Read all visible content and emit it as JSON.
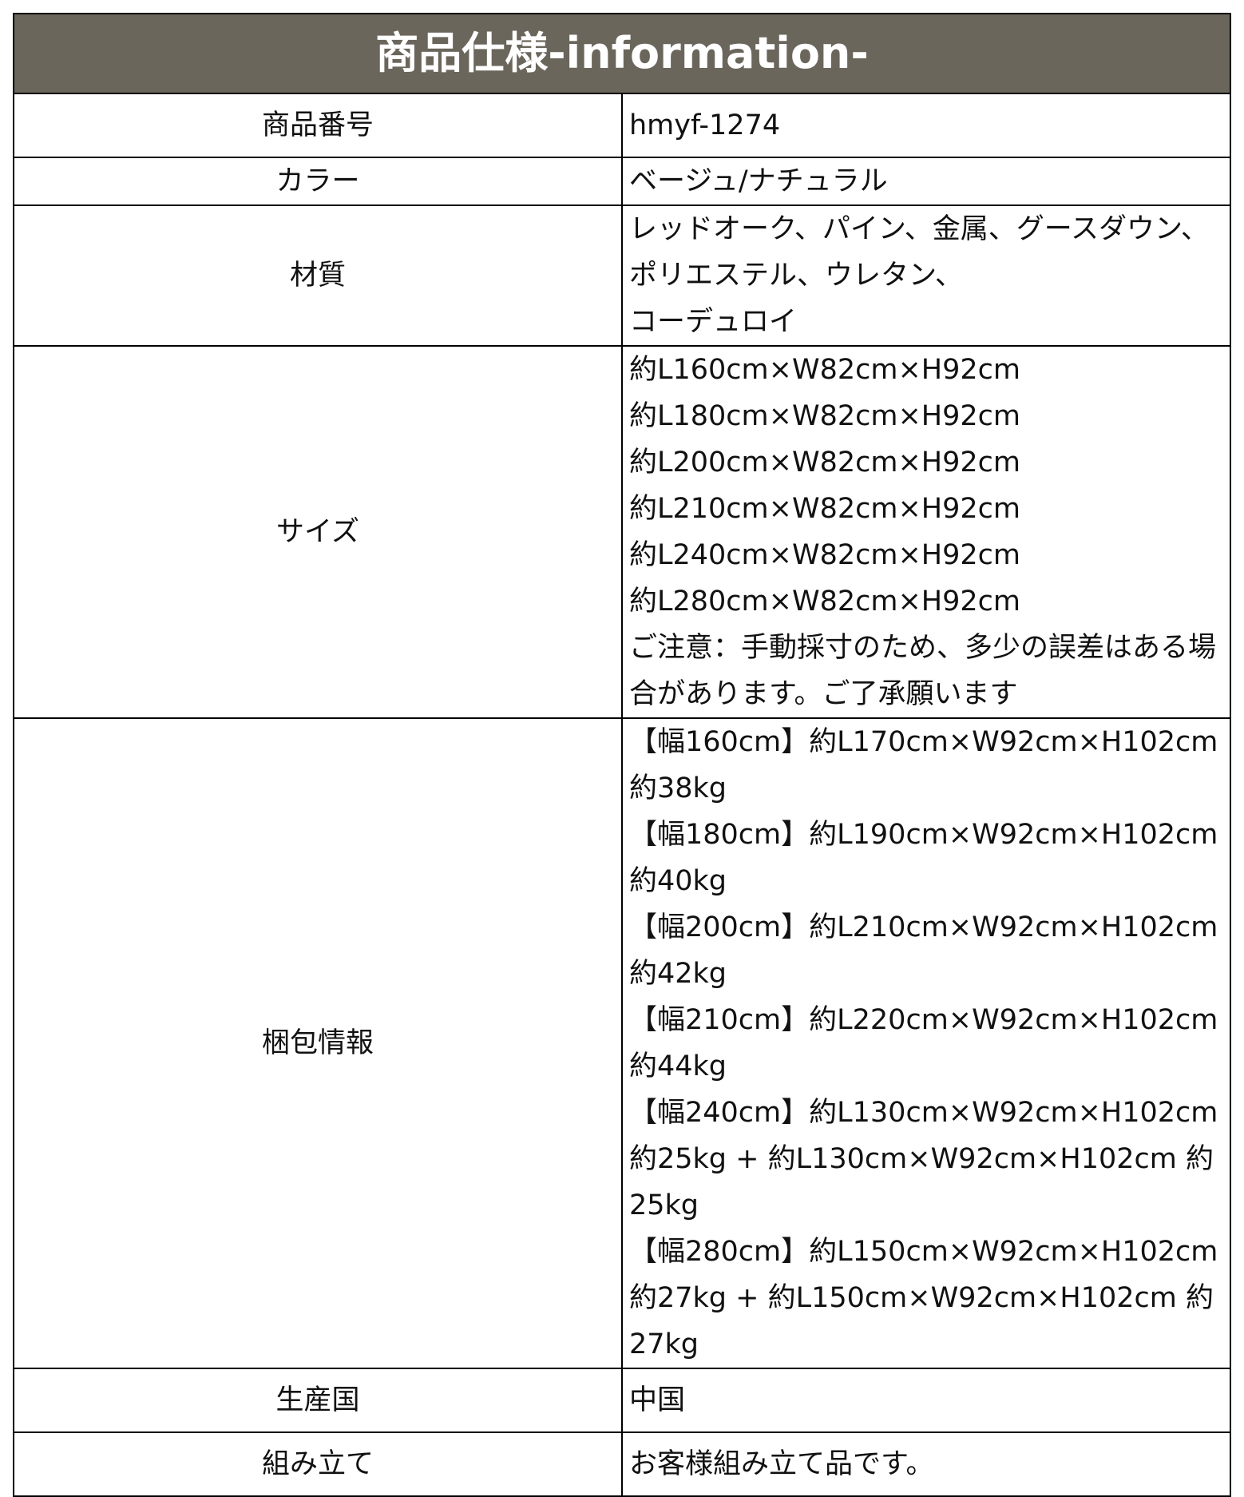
{
  "title": "商品仕様-information-",
  "header_color": "#6b665c",
  "rows": [
    {
      "label": "商品番号",
      "lines": [
        "hmyf-1274"
      ]
    },
    {
      "label": "カラー",
      "lines": [
        "ベージュ/ナチュラル"
      ]
    },
    {
      "label": "材質",
      "lines": [
        "レッドオーク、パイン、金属、グースダウン、ポリエステル、ウレタン、",
        "コーデュロイ"
      ]
    },
    {
      "label": "サイズ",
      "lines": [
        "約L160cm×W82cm×H92cm",
        "約L180cm×W82cm×H92cm",
        "約L200cm×W82cm×H92cm",
        "約L210cm×W82cm×H92cm",
        "約L240cm×W82cm×H92cm",
        "約L280cm×W82cm×H92cm",
        "ご注意：手動採寸のため、多少の誤差はある場合があります。ご了承願います"
      ]
    },
    {
      "label": "梱包情報",
      "lines": [
        "【幅160cm】約L170cm×W92cm×H102cm 約38kg",
        "【幅180cm】約L190cm×W92cm×H102cm 約40kg",
        "【幅200cm】約L210cm×W92cm×H102cm 約42kg",
        "【幅210cm】約L220cm×W92cm×H102cm 約44kg",
        "【幅240cm】約L130cm×W92cm×H102cm 約25kg + 約L130cm×W92cm×H102cm 約25kg",
        "【幅280cm】約L150cm×W92cm×H102cm 約27kg + 約L150cm×W92cm×H102cm 約27kg"
      ]
    },
    {
      "label": "生産国",
      "lines": [
        "中国"
      ]
    },
    {
      "label": "組み立て",
      "lines": [
        "お客様組み立て品です。"
      ]
    }
  ]
}
